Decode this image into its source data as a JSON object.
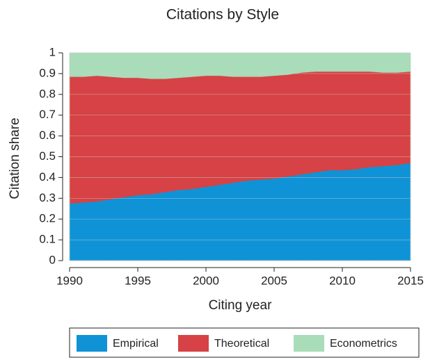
{
  "chart_data": {
    "type": "stacked_area",
    "title": "Citations by Style",
    "x_label": "Citing year",
    "y_label": "Citation share",
    "x": [
      1990,
      1991,
      1992,
      1993,
      1994,
      1995,
      1996,
      1997,
      1998,
      1999,
      2000,
      2001,
      2002,
      2003,
      2004,
      2005,
      2006,
      2007,
      2008,
      2009,
      2010,
      2011,
      2012,
      2013,
      2014,
      2015
    ],
    "series": [
      {
        "name": "Empirical",
        "color": "#0f93d6",
        "values": [
          0.275,
          0.28,
          0.285,
          0.295,
          0.305,
          0.315,
          0.32,
          0.33,
          0.34,
          0.345,
          0.355,
          0.365,
          0.375,
          0.385,
          0.39,
          0.395,
          0.405,
          0.415,
          0.425,
          0.435,
          0.435,
          0.44,
          0.45,
          0.455,
          0.46,
          0.47
        ]
      },
      {
        "name": "Theoretical",
        "color": "#d64245",
        "values": [
          0.61,
          0.605,
          0.605,
          0.59,
          0.575,
          0.565,
          0.555,
          0.545,
          0.54,
          0.54,
          0.535,
          0.525,
          0.51,
          0.5,
          0.495,
          0.495,
          0.49,
          0.49,
          0.485,
          0.475,
          0.475,
          0.47,
          0.46,
          0.45,
          0.445,
          0.44
        ]
      },
      {
        "name": "Econometrics",
        "color": "#a9dcb8",
        "values": [
          0.115,
          0.115,
          0.11,
          0.115,
          0.12,
          0.12,
          0.125,
          0.125,
          0.12,
          0.115,
          0.11,
          0.11,
          0.115,
          0.115,
          0.115,
          0.11,
          0.105,
          0.095,
          0.09,
          0.09,
          0.09,
          0.09,
          0.09,
          0.095,
          0.095,
          0.09
        ]
      }
    ],
    "xlim": [
      1990,
      2015
    ],
    "xticks": [
      1990,
      1995,
      2000,
      2005,
      2010,
      2015
    ],
    "ylim": [
      0,
      1
    ],
    "yticks": [
      0,
      0.1,
      0.2,
      0.3,
      0.4,
      0.5,
      0.6,
      0.7,
      0.8,
      0.9,
      1
    ],
    "grid": true,
    "legend": "bottom"
  }
}
